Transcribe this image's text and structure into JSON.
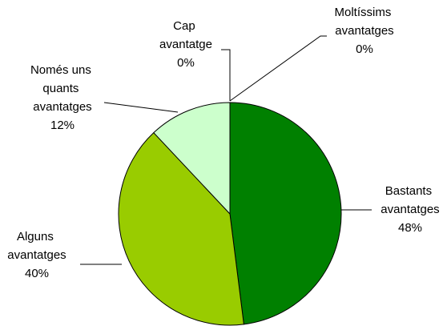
{
  "chart_data": {
    "type": "pie",
    "categories": [
      "Moltíssims avantatges",
      "Bastants avantatges",
      "Alguns avantatges",
      "Només uns quants avantatges",
      "Cap avantatge"
    ],
    "values": [
      0,
      48,
      40,
      12,
      0
    ],
    "value_labels": [
      "0%",
      "48%",
      "40%",
      "12%",
      "0%"
    ],
    "colors": [
      "#ffffff",
      "#008000",
      "#99cc00",
      "#ccffcc",
      "#ffffff"
    ]
  }
}
